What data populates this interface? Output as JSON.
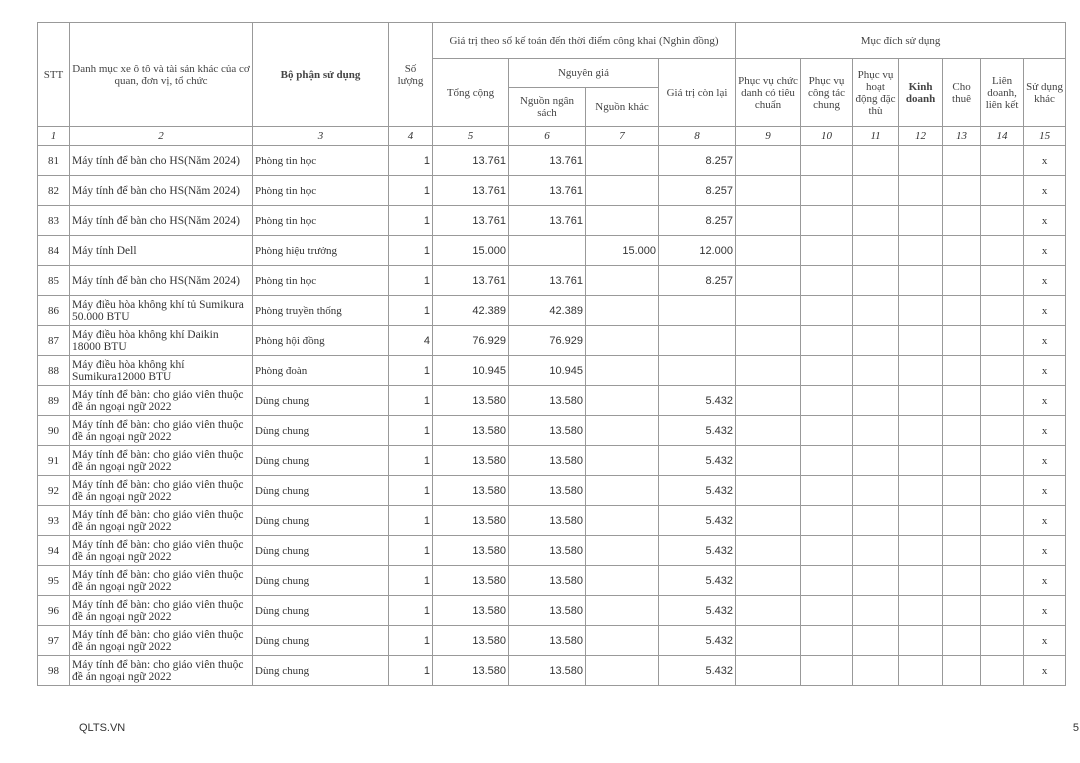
{
  "header": {
    "stt": "STT",
    "name": "Danh mục xe ô tô và tài sản khác của cơ quan, đơn vị, tổ chức",
    "dept": "Bộ phận sử dụng",
    "qty": "Số lượng",
    "value_group": "Giá trị theo sổ kế toán đến thời điểm công khai (Nghìn đồng)",
    "total": "Tổng cộng",
    "original": "Nguyên giá",
    "budget": "Nguồn ngân sách",
    "other_src": "Nguồn khác",
    "remaining": "Giá trị còn lại",
    "purpose_group": "Mục đích sử dụng",
    "p9": "Phục vụ chức danh có tiêu chuẩn",
    "p10": "Phục vụ công tác chung",
    "p11": "Phục vụ hoạt động đặc thù",
    "p12": "Kinh doanh",
    "p13": "Cho thuê",
    "p14": "Liên doanh, liên kết",
    "p15": "Sử dụng khác"
  },
  "col_numbers": [
    "1",
    "2",
    "3",
    "4",
    "5",
    "6",
    "7",
    "8",
    "9",
    "10",
    "11",
    "12",
    "13",
    "14",
    "15"
  ],
  "rows": [
    {
      "stt": "81",
      "name": "Máy tính để bàn cho HS(Năm 2024)",
      "dept": "Phòng tin học",
      "qty": "1",
      "total": "13.761",
      "budget": "13.761",
      "other": "",
      "remaining": "8.257",
      "p15": "x"
    },
    {
      "stt": "82",
      "name": "Máy tính để bàn cho HS(Năm 2024)",
      "dept": "Phòng tin học",
      "qty": "1",
      "total": "13.761",
      "budget": "13.761",
      "other": "",
      "remaining": "8.257",
      "p15": "x"
    },
    {
      "stt": "83",
      "name": "Máy tính để bàn cho HS(Năm 2024)",
      "dept": "Phòng tin học",
      "qty": "1",
      "total": "13.761",
      "budget": "13.761",
      "other": "",
      "remaining": "8.257",
      "p15": "x"
    },
    {
      "stt": "84",
      "name": "Máy tính Dell",
      "dept": "Phòng hiệu trưởng",
      "qty": "1",
      "total": "15.000",
      "budget": "",
      "other": "15.000",
      "remaining": "12.000",
      "p15": "x"
    },
    {
      "stt": "85",
      "name": "Máy tính để bàn cho HS(Năm 2024)",
      "dept": "Phòng tin học",
      "qty": "1",
      "total": "13.761",
      "budget": "13.761",
      "other": "",
      "remaining": "8.257",
      "p15": "x"
    },
    {
      "stt": "86",
      "name": "Máy điều hòa không khí tủ Sumikura 50.000 BTU",
      "dept": "Phòng truyền thống",
      "qty": "1",
      "total": "42.389",
      "budget": "42.389",
      "other": "",
      "remaining": "",
      "p15": "x"
    },
    {
      "stt": "87",
      "name": "Máy điều hòa không khí Daikin 18000 BTU",
      "dept": "Phòng hội đồng",
      "qty": "4",
      "total": "76.929",
      "budget": "76.929",
      "other": "",
      "remaining": "",
      "p15": "x"
    },
    {
      "stt": "88",
      "name": "Máy điều hòa không khí Sumikura12000 BTU",
      "dept": "Phòng đoàn",
      "qty": "1",
      "total": "10.945",
      "budget": "10.945",
      "other": "",
      "remaining": "",
      "p15": "x"
    },
    {
      "stt": "89",
      "name": "Máy tính để bàn: cho giáo viên thuộc đề án ngoại ngữ 2022",
      "dept": "Dùng chung",
      "qty": "1",
      "total": "13.580",
      "budget": "13.580",
      "other": "",
      "remaining": "5.432",
      "p15": "x"
    },
    {
      "stt": "90",
      "name": "Máy tính để bàn: cho giáo viên thuộc đề án ngoại ngữ 2022",
      "dept": "Dùng chung",
      "qty": "1",
      "total": "13.580",
      "budget": "13.580",
      "other": "",
      "remaining": "5.432",
      "p15": "x"
    },
    {
      "stt": "91",
      "name": "Máy tính để bàn: cho giáo viên thuộc đề án ngoại ngữ 2022",
      "dept": "Dùng chung",
      "qty": "1",
      "total": "13.580",
      "budget": "13.580",
      "other": "",
      "remaining": "5.432",
      "p15": "x"
    },
    {
      "stt": "92",
      "name": "Máy tính để bàn: cho giáo viên thuộc đề án ngoại ngữ 2022",
      "dept": "Dùng chung",
      "qty": "1",
      "total": "13.580",
      "budget": "13.580",
      "other": "",
      "remaining": "5.432",
      "p15": "x"
    },
    {
      "stt": "93",
      "name": "Máy tính để bàn: cho giáo viên thuộc đề án ngoại ngữ 2022",
      "dept": "Dùng chung",
      "qty": "1",
      "total": "13.580",
      "budget": "13.580",
      "other": "",
      "remaining": "5.432",
      "p15": "x"
    },
    {
      "stt": "94",
      "name": "Máy tính để bàn: cho giáo viên thuộc đề án ngoại ngữ 2022",
      "dept": "Dùng chung",
      "qty": "1",
      "total": "13.580",
      "budget": "13.580",
      "other": "",
      "remaining": "5.432",
      "p15": "x"
    },
    {
      "stt": "95",
      "name": "Máy tính để bàn: cho giáo viên thuộc đề án ngoại ngữ 2022",
      "dept": "Dùng chung",
      "qty": "1",
      "total": "13.580",
      "budget": "13.580",
      "other": "",
      "remaining": "5.432",
      "p15": "x"
    },
    {
      "stt": "96",
      "name": "Máy tính để bàn: cho giáo viên thuộc đề án ngoại ngữ 2022",
      "dept": "Dùng chung",
      "qty": "1",
      "total": "13.580",
      "budget": "13.580",
      "other": "",
      "remaining": "5.432",
      "p15": "x"
    },
    {
      "stt": "97",
      "name": "Máy tính để bàn: cho giáo viên thuộc đề án ngoại ngữ 2022",
      "dept": "Dùng chung",
      "qty": "1",
      "total": "13.580",
      "budget": "13.580",
      "other": "",
      "remaining": "5.432",
      "p15": "x"
    },
    {
      "stt": "98",
      "name": "Máy tính để bàn: cho giáo viên thuộc đề án ngoại ngữ 2022",
      "dept": "Dùng chung",
      "qty": "1",
      "total": "13.580",
      "budget": "13.580",
      "other": "",
      "remaining": "5.432",
      "p15": "x"
    }
  ],
  "footer": {
    "source": "QLTS.VN",
    "page": "5"
  }
}
